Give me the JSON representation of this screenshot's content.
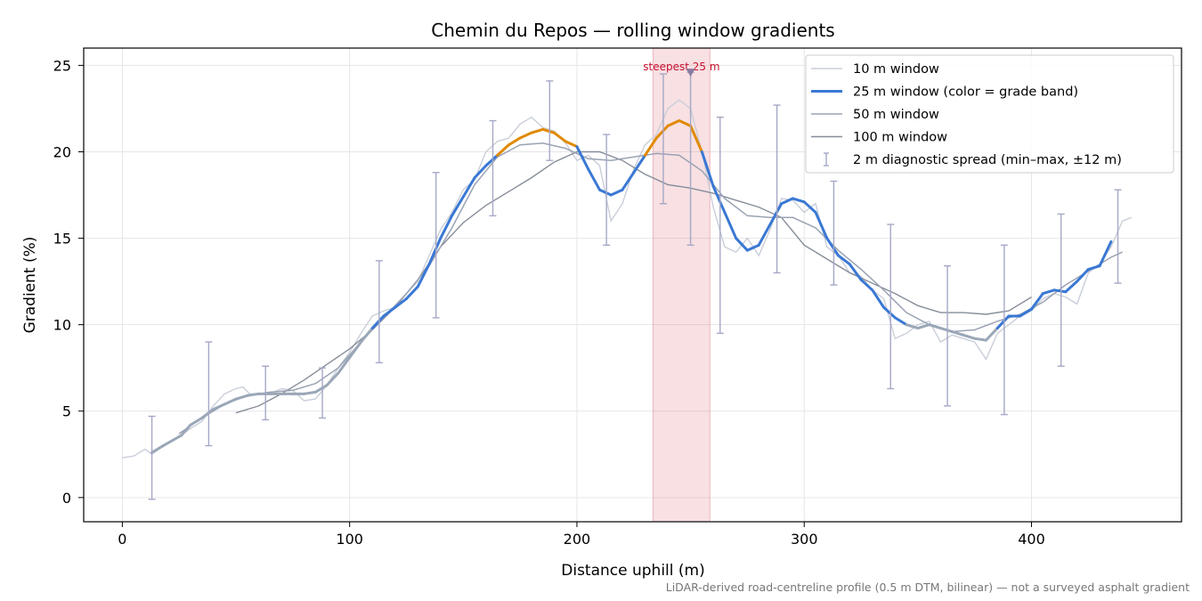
{
  "chart_data": {
    "type": "line",
    "title": "Chemin du Repos — rolling window gradients",
    "xlabel": "Distance uphill (m)",
    "ylabel": "Gradient (%)",
    "xlim": [
      -17,
      466
    ],
    "ylim": [
      -1.4,
      26.0
    ],
    "xticks": [
      0,
      100,
      200,
      300,
      400
    ],
    "yticks": [
      0,
      5,
      10,
      15,
      20,
      25
    ],
    "grid": true,
    "legend_position": "top-right",
    "footnote": "LiDAR-derived road-centreline profile (0.5 m DTM, bilinear) — not a surveyed asphalt gradient",
    "highlight": {
      "label": "steepest 25 m",
      "x_start": 233.5,
      "x_end": 258.5,
      "peak_x": 250,
      "peak_y": 24.6
    },
    "series": [
      {
        "name": "10 m window",
        "color": "#c9ced9",
        "points": [
          [
            0,
            2.3
          ],
          [
            5,
            2.4
          ],
          [
            10,
            2.8
          ],
          [
            13,
            2.5
          ],
          [
            15,
            2.7
          ],
          [
            20,
            3.2
          ],
          [
            25,
            3.5
          ],
          [
            30,
            4.0
          ],
          [
            35,
            4.4
          ],
          [
            40,
            5.3
          ],
          [
            45,
            6.0
          ],
          [
            50,
            6.3
          ],
          [
            53,
            6.4
          ],
          [
            56,
            6.0
          ],
          [
            60,
            6.0
          ],
          [
            65,
            6.0
          ],
          [
            70,
            6.3
          ],
          [
            75,
            6.2
          ],
          [
            80,
            5.6
          ],
          [
            85,
            5.7
          ],
          [
            90,
            6.5
          ],
          [
            95,
            7.5
          ],
          [
            100,
            8.4
          ],
          [
            105,
            9.5
          ],
          [
            110,
            10.5
          ],
          [
            115,
            10.8
          ],
          [
            120,
            11.0
          ],
          [
            125,
            11.8
          ],
          [
            130,
            12.5
          ],
          [
            135,
            14.0
          ],
          [
            140,
            15.5
          ],
          [
            145,
            16.5
          ],
          [
            150,
            17.8
          ],
          [
            155,
            18.4
          ],
          [
            160,
            20.0
          ],
          [
            165,
            20.6
          ],
          [
            170,
            20.8
          ],
          [
            175,
            21.6
          ],
          [
            180,
            22.0
          ],
          [
            185,
            21.4
          ],
          [
            190,
            21.2
          ],
          [
            195,
            20.5
          ],
          [
            200,
            19.5
          ],
          [
            205,
            19.8
          ],
          [
            210,
            19.2
          ],
          [
            215,
            16.0
          ],
          [
            220,
            17.0
          ],
          [
            225,
            19.0
          ],
          [
            230,
            20.4
          ],
          [
            235,
            21.0
          ],
          [
            240,
            22.5
          ],
          [
            245,
            23.0
          ],
          [
            250,
            22.5
          ],
          [
            255,
            20.0
          ],
          [
            260,
            16.8
          ],
          [
            265,
            14.5
          ],
          [
            270,
            14.2
          ],
          [
            275,
            15.0
          ],
          [
            280,
            14.0
          ],
          [
            285,
            15.5
          ],
          [
            290,
            17.3
          ],
          [
            295,
            17.2
          ],
          [
            300,
            16.5
          ],
          [
            305,
            17.0
          ],
          [
            310,
            14.5
          ],
          [
            315,
            14.0
          ],
          [
            320,
            13.0
          ],
          [
            325,
            12.8
          ],
          [
            330,
            12.0
          ],
          [
            335,
            11.5
          ],
          [
            340,
            9.2
          ],
          [
            345,
            9.5
          ],
          [
            350,
            10.0
          ],
          [
            355,
            10.2
          ],
          [
            360,
            9.0
          ],
          [
            365,
            9.4
          ],
          [
            370,
            9.2
          ],
          [
            375,
            9.0
          ],
          [
            380,
            8.0
          ],
          [
            385,
            9.5
          ],
          [
            390,
            10.0
          ],
          [
            395,
            10.5
          ],
          [
            400,
            10.8
          ],
          [
            405,
            11.5
          ],
          [
            410,
            11.8
          ],
          [
            415,
            11.6
          ],
          [
            420,
            11.2
          ],
          [
            425,
            13.0
          ],
          [
            430,
            13.5
          ],
          [
            435,
            14.5
          ],
          [
            440,
            16.0
          ],
          [
            444,
            16.2
          ]
        ]
      },
      {
        "name": "25 m window (color = grade band)",
        "color": "#3a78d4",
        "band_colors": {
          "moderate": "#9aa7b8",
          "steep": "#3a78d4",
          "very_steep": "#e08a00"
        },
        "band_thresholds": [
          10,
          20
        ],
        "points": [
          [
            13,
            2.6
          ],
          [
            18,
            3.0
          ],
          [
            22,
            3.3
          ],
          [
            26,
            3.6
          ],
          [
            30,
            4.2
          ],
          [
            35,
            4.6
          ],
          [
            40,
            5.1
          ],
          [
            45,
            5.4
          ],
          [
            50,
            5.7
          ],
          [
            55,
            5.9
          ],
          [
            60,
            6.0
          ],
          [
            65,
            6.0
          ],
          [
            70,
            6.0
          ],
          [
            75,
            6.0
          ],
          [
            80,
            6.0
          ],
          [
            85,
            6.1
          ],
          [
            90,
            6.5
          ],
          [
            95,
            7.2
          ],
          [
            100,
            8.1
          ],
          [
            105,
            9.0
          ],
          [
            110,
            9.8
          ],
          [
            115,
            10.5
          ],
          [
            120,
            11.0
          ],
          [
            125,
            11.5
          ],
          [
            130,
            12.2
          ],
          [
            135,
            13.5
          ],
          [
            140,
            15.0
          ],
          [
            145,
            16.3
          ],
          [
            150,
            17.4
          ],
          [
            155,
            18.5
          ],
          [
            160,
            19.2
          ],
          [
            165,
            19.8
          ],
          [
            170,
            20.4
          ],
          [
            175,
            20.8
          ],
          [
            180,
            21.1
          ],
          [
            185,
            21.3
          ],
          [
            190,
            21.1
          ],
          [
            195,
            20.6
          ],
          [
            200,
            20.3
          ],
          [
            205,
            19.0
          ],
          [
            210,
            17.8
          ],
          [
            215,
            17.5
          ],
          [
            220,
            17.8
          ],
          [
            225,
            18.8
          ],
          [
            230,
            19.8
          ],
          [
            235,
            20.8
          ],
          [
            240,
            21.5
          ],
          [
            245,
            21.8
          ],
          [
            250,
            21.5
          ],
          [
            255,
            20.0
          ],
          [
            260,
            18.0
          ],
          [
            265,
            16.5
          ],
          [
            270,
            15.0
          ],
          [
            275,
            14.3
          ],
          [
            280,
            14.6
          ],
          [
            285,
            15.8
          ],
          [
            290,
            17.0
          ],
          [
            295,
            17.3
          ],
          [
            300,
            17.1
          ],
          [
            305,
            16.5
          ],
          [
            310,
            15.0
          ],
          [
            315,
            14.0
          ],
          [
            320,
            13.5
          ],
          [
            325,
            12.6
          ],
          [
            330,
            12.0
          ],
          [
            335,
            11.0
          ],
          [
            340,
            10.4
          ],
          [
            345,
            10.0
          ],
          [
            350,
            9.8
          ],
          [
            355,
            10.0
          ],
          [
            360,
            9.8
          ],
          [
            365,
            9.6
          ],
          [
            370,
            9.4
          ],
          [
            375,
            9.2
          ],
          [
            380,
            9.1
          ],
          [
            385,
            9.8
          ],
          [
            390,
            10.5
          ],
          [
            395,
            10.5
          ],
          [
            400,
            10.9
          ],
          [
            405,
            11.8
          ],
          [
            410,
            12.0
          ],
          [
            415,
            11.9
          ],
          [
            420,
            12.5
          ],
          [
            425,
            13.2
          ],
          [
            430,
            13.4
          ],
          [
            435,
            14.8
          ]
        ]
      },
      {
        "name": "50 m window",
        "color": "#9aa3b3",
        "points": [
          [
            25,
            3.7
          ],
          [
            35,
            4.6
          ],
          [
            45,
            5.4
          ],
          [
            55,
            5.9
          ],
          [
            65,
            6.1
          ],
          [
            75,
            6.2
          ],
          [
            85,
            6.6
          ],
          [
            95,
            7.5
          ],
          [
            105,
            9.0
          ],
          [
            115,
            10.4
          ],
          [
            125,
            11.8
          ],
          [
            135,
            13.4
          ],
          [
            145,
            15.6
          ],
          [
            155,
            18.1
          ],
          [
            165,
            19.7
          ],
          [
            175,
            20.4
          ],
          [
            185,
            20.5
          ],
          [
            195,
            20.2
          ],
          [
            205,
            19.6
          ],
          [
            215,
            19.5
          ],
          [
            225,
            19.7
          ],
          [
            235,
            19.9
          ],
          [
            245,
            19.8
          ],
          [
            255,
            18.9
          ],
          [
            265,
            17.3
          ],
          [
            275,
            16.3
          ],
          [
            285,
            16.2
          ],
          [
            295,
            16.2
          ],
          [
            305,
            15.6
          ],
          [
            315,
            14.3
          ],
          [
            325,
            13.2
          ],
          [
            335,
            12.0
          ],
          [
            345,
            10.7
          ],
          [
            355,
            10.0
          ],
          [
            365,
            9.6
          ],
          [
            375,
            9.7
          ],
          [
            385,
            10.2
          ],
          [
            395,
            10.6
          ],
          [
            405,
            11.3
          ],
          [
            415,
            12.3
          ],
          [
            425,
            13.1
          ],
          [
            435,
            13.9
          ],
          [
            440,
            14.2
          ]
        ]
      },
      {
        "name": "100 m window",
        "color": "#868d99",
        "points": [
          [
            50,
            4.9
          ],
          [
            60,
            5.3
          ],
          [
            70,
            6.0
          ],
          [
            80,
            6.8
          ],
          [
            90,
            7.7
          ],
          [
            100,
            8.6
          ],
          [
            110,
            9.7
          ],
          [
            120,
            11.0
          ],
          [
            130,
            12.6
          ],
          [
            140,
            14.5
          ],
          [
            150,
            15.9
          ],
          [
            160,
            16.9
          ],
          [
            170,
            17.7
          ],
          [
            180,
            18.5
          ],
          [
            190,
            19.4
          ],
          [
            200,
            20.0
          ],
          [
            210,
            20.0
          ],
          [
            220,
            19.5
          ],
          [
            230,
            18.7
          ],
          [
            240,
            18.1
          ],
          [
            250,
            17.9
          ],
          [
            260,
            17.6
          ],
          [
            270,
            17.2
          ],
          [
            280,
            16.8
          ],
          [
            290,
            16.2
          ],
          [
            300,
            14.6
          ],
          [
            310,
            13.8
          ],
          [
            320,
            13.0
          ],
          [
            330,
            12.4
          ],
          [
            340,
            11.8
          ],
          [
            350,
            11.1
          ],
          [
            360,
            10.7
          ],
          [
            370,
            10.7
          ],
          [
            380,
            10.6
          ],
          [
            390,
            10.8
          ],
          [
            400,
            11.6
          ]
        ]
      },
      {
        "name": "2 m diagnostic spread (min–max, ±12 m)",
        "color": "#a5a8c6",
        "errorbars": [
          [
            13,
            -0.1,
            4.7
          ],
          [
            38,
            3.0,
            9.0
          ],
          [
            63,
            4.5,
            7.6
          ],
          [
            88,
            4.6,
            7.5
          ],
          [
            113,
            7.8,
            13.7
          ],
          [
            138,
            10.4,
            18.8
          ],
          [
            163,
            16.3,
            21.8
          ],
          [
            188,
            19.5,
            24.1
          ],
          [
            213,
            14.6,
            21.0
          ],
          [
            238,
            17.0,
            24.5
          ],
          [
            250,
            14.6,
            24.6
          ],
          [
            263,
            9.5,
            22.0
          ],
          [
            288,
            13.0,
            22.7
          ],
          [
            313,
            12.3,
            18.3
          ],
          [
            338,
            6.3,
            15.8
          ],
          [
            363,
            5.3,
            13.4
          ],
          [
            388,
            4.8,
            14.6
          ],
          [
            413,
            7.6,
            16.4
          ],
          [
            438,
            12.4,
            17.8
          ]
        ]
      }
    ]
  }
}
